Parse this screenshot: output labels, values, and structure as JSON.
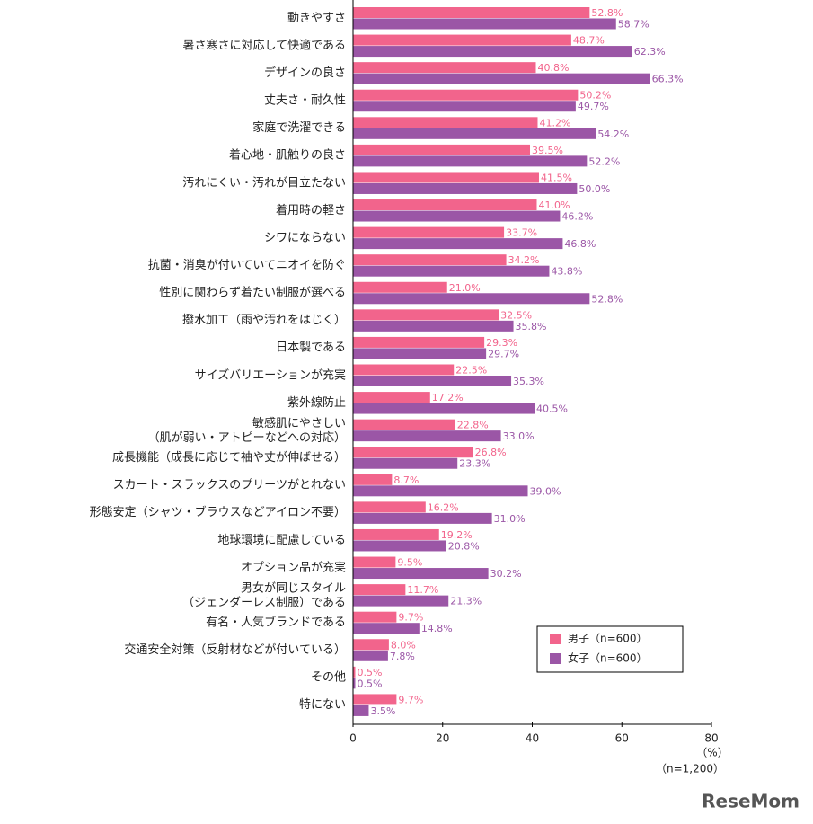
{
  "chart_data": {
    "type": "bar",
    "orientation": "horizontal",
    "categories": [
      "動きやすさ",
      "暑さ寒さに対応して快適である",
      "デザインの良さ",
      "丈夫さ・耐久性",
      "家庭で洗濯できる",
      "着心地・肌触りの良さ",
      "汚れにくい・汚れが目立たない",
      "着用時の軽さ",
      "シワにならない",
      "抗菌・消臭が付いていてニオイを防ぐ",
      "性別に関わらず着たい制服が選べる",
      "撥水加工（雨や汚れをはじく）",
      "日本製である",
      "サイズバリエーションが充実",
      "紫外線防止",
      "敏感肌にやさしい\n（肌が弱い・アトピーなどへの対応）",
      "成長機能（成長に応じて袖や丈が伸ばせる）",
      "スカート・スラックスのプリーツがとれない",
      "形態安定（シャツ・ブラウスなどアイロン不要）",
      "地球環境に配慮している",
      "オプション品が充実",
      "男女が同じスタイル\n（ジェンダーレス制服）である",
      "有名・人気ブランドである",
      "交通安全対策（反射材などが付いている）",
      "その他",
      "特にない"
    ],
    "series": [
      {
        "name": "男子（n=600）",
        "color": "#f2648c",
        "values": [
          52.8,
          48.7,
          40.8,
          50.2,
          41.2,
          39.5,
          41.5,
          41.0,
          33.7,
          34.2,
          21.0,
          32.5,
          29.3,
          22.5,
          17.2,
          22.8,
          26.8,
          8.7,
          16.2,
          19.2,
          9.5,
          11.7,
          9.7,
          8.0,
          0.5,
          9.7
        ],
        "value_labels": [
          "52.8%",
          "48.7%",
          "40.8%",
          "50.2%",
          "41.2%",
          "39.5%",
          "41.5%",
          "41.0%",
          "33.7%",
          "34.2%",
          "21.0%",
          "32.5%",
          "29.3%",
          "22.5%",
          "17.2%",
          "22.8%",
          "26.8%",
          "8.7%",
          "16.2%",
          "19.2%",
          "9.5%",
          "11.7%",
          "9.7%",
          "8.0%",
          "0.5%",
          "9.7%"
        ]
      },
      {
        "name": "女子（n=600）",
        "color": "#9b56a6",
        "values": [
          58.7,
          62.3,
          66.3,
          49.7,
          54.2,
          52.2,
          50.0,
          46.2,
          46.8,
          43.8,
          52.8,
          35.8,
          29.7,
          35.3,
          40.5,
          33.0,
          23.3,
          39.0,
          31.0,
          20.8,
          30.2,
          21.3,
          14.8,
          7.8,
          0.5,
          3.5
        ],
        "value_labels": [
          "58.7%",
          "62.3%",
          "66.3%",
          "49.7%",
          "54.2%",
          "52.2%",
          "50.0%",
          "46.2%",
          "46.8%",
          "43.8%",
          "52.8%",
          "35.8%",
          "29.7%",
          "35.3%",
          "40.5%",
          "33.0%",
          "23.3%",
          "39.0%",
          "31.0%",
          "20.8%",
          "30.2%",
          "21.3%",
          "14.8%",
          "7.8%",
          "0.5%",
          "3.5%"
        ]
      }
    ],
    "xlim": [
      0,
      80
    ],
    "xticks": [
      0,
      20,
      40,
      60,
      80
    ],
    "x_unit": "（%）",
    "sample_note": "（n=1,200）",
    "legend": "lower-right",
    "watermark": "ReseMom"
  }
}
